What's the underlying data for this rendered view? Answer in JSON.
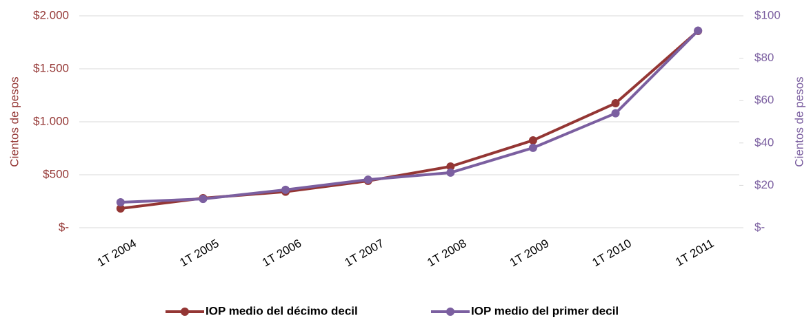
{
  "chart_data": {
    "type": "line",
    "categories": [
      "1T 2004",
      "1T 2005",
      "1T 2006",
      "1T 2007",
      "1T 2008",
      "1T 2009",
      "1T 2010",
      "1T 2011"
    ],
    "ylabel": "Cientos de pesos",
    "y2label": "Cientos de pesos",
    "ylim": [
      0,
      2000
    ],
    "yticks": [
      {
        "value": 0,
        "label": "$-"
      },
      {
        "value": 500,
        "label": "$500"
      },
      {
        "value": 1000,
        "label": "$1.000"
      },
      {
        "value": 1500,
        "label": "$1.500"
      },
      {
        "value": 2000,
        "label": "$2.000"
      }
    ],
    "y2lim": [
      0,
      100
    ],
    "y2ticks": [
      {
        "value": 0,
        "label": "$-"
      },
      {
        "value": 20,
        "label": "$20"
      },
      {
        "value": 40,
        "label": "$40"
      },
      {
        "value": 60,
        "label": "$60"
      },
      {
        "value": 80,
        "label": "$80"
      },
      {
        "value": 100,
        "label": "$100"
      }
    ],
    "grid": true,
    "legend": "bottom",
    "series": [
      {
        "name": "IOP medio del décimo decil",
        "color": "#943634",
        "values": [
          182,
          279,
          340,
          442,
          578,
          825,
          1175,
          1857
        ]
      },
      {
        "name": "IOP medio del primer decil",
        "color": "#7b5fa0",
        "axis": "y2",
        "values": [
          12,
          13.6,
          17.9,
          22.7,
          26,
          37.7,
          54,
          93
        ]
      }
    ]
  }
}
